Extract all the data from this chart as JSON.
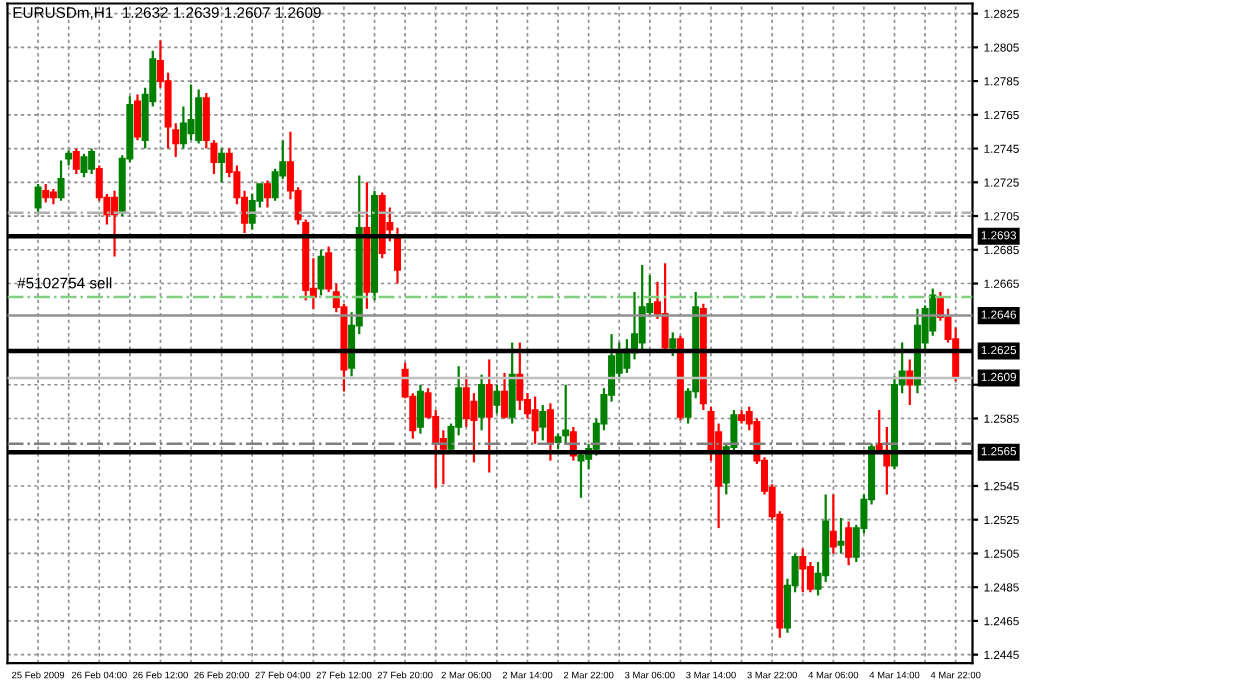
{
  "chart_data": {
    "type": "candlestick",
    "title": "EURUSDm,H1  1.2632 1.2639 1.2607 1.2609",
    "categories": [
      "25 Feb 2009",
      null,
      null,
      null,
      null,
      null,
      null,
      null,
      "26 Feb 04:00",
      null,
      null,
      null,
      null,
      null,
      null,
      null,
      "26 Feb 12:00",
      null,
      null,
      null,
      null,
      null,
      null,
      null,
      "26 Feb 20:00",
      null,
      null,
      null,
      null,
      null,
      null,
      null,
      "27 Feb 04:00",
      null,
      null,
      null,
      null,
      null,
      null,
      null,
      "27 Feb 12:00",
      null,
      null,
      null,
      null,
      null,
      null,
      null,
      "27 Feb 20:00",
      null,
      null,
      null,
      null,
      null,
      null,
      null,
      "2 Mar 06:00",
      null,
      null,
      null,
      null,
      null,
      null,
      null,
      "2 Mar 14:00",
      null,
      null,
      null,
      null,
      null,
      null,
      null,
      "2 Mar 22:00",
      null,
      null,
      null,
      null,
      null,
      null,
      null,
      "3 Mar 06:00",
      null,
      null,
      null,
      null,
      null,
      null,
      null,
      "3 Mar 14:00",
      null,
      null,
      null,
      null,
      null,
      null,
      null,
      "3 Mar 22:00",
      null,
      null,
      null,
      null,
      null,
      null,
      null,
      "4 Mar 06:00",
      null,
      null,
      null,
      null,
      null,
      null,
      null,
      "4 Mar 14:00",
      null,
      null,
      null,
      null,
      null,
      null,
      null,
      "4 Mar 22:00"
    ],
    "ohlc": [
      [
        1.271,
        1.2724,
        1.2706,
        1.2722
      ],
      [
        1.272,
        1.2724,
        1.2713,
        1.2716
      ],
      [
        1.2719,
        1.2721,
        1.2712,
        1.2716
      ],
      [
        1.2716,
        1.2738,
        1.2714,
        1.2727
      ],
      [
        1.2739,
        1.2744,
        1.2735,
        1.2742
      ],
      [
        1.2743,
        1.2745,
        1.273,
        1.2733
      ],
      [
        1.2731,
        1.2742,
        1.2728,
        1.274
      ],
      [
        1.2733,
        1.2745,
        1.273,
        1.2743
      ],
      [
        1.2733,
        1.2735,
        1.2714,
        1.2716
      ],
      [
        1.2716,
        1.2718,
        1.27,
        1.2706
      ],
      [
        1.2716,
        1.272,
        1.2681,
        1.2706
      ],
      [
        1.2708,
        1.2741,
        1.2705,
        1.2739
      ],
      [
        1.2739,
        1.2776,
        1.2737,
        1.2771
      ],
      [
        1.2773,
        1.2777,
        1.275,
        1.2752
      ],
      [
        1.275,
        1.2781,
        1.2745,
        1.2777
      ],
      [
        1.2773,
        1.2803,
        1.277,
        1.2798
      ],
      [
        1.2797,
        1.2809,
        1.2781,
        1.2785
      ],
      [
        1.2785,
        1.279,
        1.2745,
        1.2758
      ],
      [
        1.2756,
        1.276,
        1.274,
        1.2748
      ],
      [
        1.2748,
        1.277,
        1.2745,
        1.276
      ],
      [
        1.2754,
        1.2783,
        1.275,
        1.2762
      ],
      [
        1.275,
        1.278,
        1.2748,
        1.2775
      ],
      [
        1.2775,
        1.2778,
        1.2745,
        1.275
      ],
      [
        1.2748,
        1.275,
        1.273,
        1.2737
      ],
      [
        1.2737,
        1.2745,
        1.2725,
        1.2742
      ],
      [
        1.2742,
        1.2745,
        1.2728,
        1.2731
      ],
      [
        1.2731,
        1.2735,
        1.2712,
        1.2716
      ],
      [
        1.2716,
        1.272,
        1.2695,
        1.2701
      ],
      [
        1.2701,
        1.2718,
        1.2697,
        1.2714
      ],
      [
        1.2714,
        1.2724,
        1.271,
        1.2724
      ],
      [
        1.2724,
        1.2726,
        1.271,
        1.2716
      ],
      [
        1.2716,
        1.2733,
        1.2714,
        1.2731
      ],
      [
        1.2729,
        1.275,
        1.2727,
        1.2737
      ],
      [
        1.2737,
        1.2755,
        1.2715,
        1.272
      ],
      [
        1.272,
        1.2722,
        1.27,
        1.2703
      ],
      [
        1.2701,
        1.2703,
        1.2655,
        1.2661
      ],
      [
        1.2662,
        1.268,
        1.265,
        1.2657
      ],
      [
        1.2662,
        1.2685,
        1.2658,
        1.2681
      ],
      [
        1.2683,
        1.2687,
        1.266,
        1.2662
      ],
      [
        1.266,
        1.2665,
        1.2648,
        1.2651
      ],
      [
        1.2651,
        1.2653,
        1.2601,
        1.2614
      ],
      [
        1.2615,
        1.2648,
        1.261,
        1.264
      ],
      [
        1.264,
        1.2729,
        1.2635,
        1.2698
      ],
      [
        1.2698,
        1.2725,
        1.265,
        1.266
      ],
      [
        1.266,
        1.272,
        1.2655,
        1.2717
      ],
      [
        1.2717,
        1.2719,
        1.268,
        1.2683
      ],
      [
        1.2701,
        1.271,
        1.269,
        1.2697
      ],
      [
        1.2693,
        1.2698,
        1.2665,
        1.2673
      ],
      [
        1.2614,
        1.2618,
        1.2597,
        1.2598
      ],
      [
        1.2598,
        1.26,
        1.2573,
        1.2578
      ],
      [
        1.258,
        1.2605,
        1.2576,
        1.2601
      ],
      [
        1.26,
        1.2603,
        1.2585,
        1.2586
      ],
      [
        1.2586,
        1.259,
        1.2544,
        1.257
      ],
      [
        1.2573,
        1.2578,
        1.2546,
        1.2567
      ],
      [
        1.2567,
        1.2582,
        1.2564,
        1.258
      ],
      [
        1.258,
        1.2616,
        1.2575,
        1.2603
      ],
      [
        1.2603,
        1.261,
        1.258,
        1.2585
      ],
      [
        1.2595,
        1.26,
        1.2559,
        1.2584
      ],
      [
        1.2586,
        1.2611,
        1.2578,
        1.2605
      ],
      [
        1.2605,
        1.262,
        1.2553,
        1.2586
      ],
      [
        1.2593,
        1.2605,
        1.2588,
        1.2601
      ],
      [
        1.2601,
        1.2612,
        1.2585,
        1.2586
      ],
      [
        1.2586,
        1.263,
        1.2582,
        1.2611
      ],
      [
        1.2611,
        1.263,
        1.259,
        1.2596
      ],
      [
        1.2596,
        1.26,
        1.2585,
        1.2588
      ],
      [
        1.259,
        1.2598,
        1.257,
        1.2578
      ],
      [
        1.258,
        1.2593,
        1.2572,
        1.2589
      ],
      [
        1.259,
        1.2594,
        1.256,
        1.257
      ],
      [
        1.2571,
        1.2576,
        1.2567,
        1.2574
      ],
      [
        1.2575,
        1.2605,
        1.257,
        1.2578
      ],
      [
        1.2577,
        1.258,
        1.256,
        1.2563
      ],
      [
        1.256,
        1.2565,
        1.2538,
        1.2563
      ],
      [
        1.2561,
        1.257,
        1.2555,
        1.2567
      ],
      [
        1.2567,
        1.2585,
        1.2563,
        1.2582
      ],
      [
        1.2582,
        1.2603,
        1.2578,
        1.2599
      ],
      [
        1.2599,
        1.2635,
        1.2595,
        1.2622
      ],
      [
        1.2612,
        1.263,
        1.2608,
        1.2624
      ],
      [
        1.2615,
        1.2632,
        1.2612,
        1.2626
      ],
      [
        1.2624,
        1.266,
        1.262,
        1.2635
      ],
      [
        1.263,
        1.2676,
        1.2626,
        1.2651
      ],
      [
        1.2648,
        1.267,
        1.2645,
        1.2653
      ],
      [
        1.2654,
        1.2666,
        1.2644,
        1.2647
      ],
      [
        1.2647,
        1.2677,
        1.2625,
        1.2627
      ],
      [
        1.2627,
        1.2636,
        1.2622,
        1.2632
      ],
      [
        1.2632,
        1.2634,
        1.2584,
        1.2586
      ],
      [
        1.2586,
        1.2603,
        1.2582,
        1.2601
      ],
      [
        1.2601,
        1.266,
        1.2597,
        1.2651
      ],
      [
        1.265,
        1.2653,
        1.259,
        1.2594
      ],
      [
        1.2589,
        1.2592,
        1.256,
        1.2565
      ],
      [
        1.2577,
        1.2582,
        1.252,
        1.2545
      ],
      [
        1.2547,
        1.257,
        1.254,
        1.2568
      ],
      [
        1.2568,
        1.259,
        1.2565,
        1.2587
      ],
      [
        1.2587,
        1.259,
        1.2582,
        1.2584
      ],
      [
        1.2589,
        1.2592,
        1.2578,
        1.2582
      ],
      [
        1.2583,
        1.2585,
        1.2558,
        1.256
      ],
      [
        1.256,
        1.2562,
        1.254,
        1.2542
      ],
      [
        1.2544,
        1.2546,
        1.2525,
        1.2527
      ],
      [
        1.2528,
        1.253,
        1.2455,
        1.2461
      ],
      [
        1.2461,
        1.249,
        1.2458,
        1.2486
      ],
      [
        1.2486,
        1.2505,
        1.2482,
        1.2503
      ],
      [
        1.2503,
        1.2508,
        1.2482,
        1.2496
      ],
      [
        1.2497,
        1.25,
        1.2482,
        1.2484
      ],
      [
        1.2484,
        1.25,
        1.248,
        1.2493
      ],
      [
        1.2492,
        1.254,
        1.2488,
        1.2524
      ],
      [
        1.2518,
        1.254,
        1.2505,
        1.2509
      ],
      [
        1.251,
        1.2526,
        1.2505,
        1.2512
      ],
      [
        1.252,
        1.2524,
        1.2498,
        1.2503
      ],
      [
        1.2503,
        1.2522,
        1.25,
        1.252
      ],
      [
        1.252,
        1.254,
        1.2517,
        1.2537
      ],
      [
        1.2537,
        1.257,
        1.2534,
        1.2568
      ],
      [
        1.257,
        1.259,
        1.2565,
        1.2566
      ],
      [
        1.2566,
        1.258,
        1.254,
        1.2557
      ],
      [
        1.2557,
        1.261,
        1.2555,
        1.2605
      ],
      [
        1.2605,
        1.263,
        1.26,
        1.2613
      ],
      [
        1.2613,
        1.262,
        1.2593,
        1.2605
      ],
      [
        1.2605,
        1.265,
        1.26,
        1.264
      ],
      [
        1.263,
        1.2652,
        1.2626,
        1.265
      ],
      [
        1.2637,
        1.2662,
        1.2634,
        1.2658
      ],
      [
        1.2656,
        1.266,
        1.2643,
        1.2645
      ],
      [
        1.2645,
        1.265,
        1.263,
        1.2632
      ],
      [
        1.2632,
        1.2639,
        1.2607,
        1.2609
      ]
    ],
    "colors": [
      "#008000",
      "#ff0000",
      "#ff0000",
      "#008000",
      "#008000",
      "#ff0000",
      "#008000",
      "#008000",
      "#ff0000",
      "#ff0000",
      "#ff0000",
      "#008000",
      "#008000",
      "#ff0000",
      "#008000",
      "#008000",
      "#ff0000",
      "#ff0000",
      "#ff0000",
      "#008000",
      "#008000",
      "#008000",
      "#ff0000",
      "#ff0000",
      "#008000",
      "#ff0000",
      "#ff0000",
      "#ff0000",
      "#008000",
      "#008000",
      "#ff0000",
      "#008000",
      "#008000",
      "#ff0000",
      "#ff0000",
      "#ff0000",
      "#ff0000",
      "#008000",
      "#ff0000",
      "#ff0000",
      "#ff0000",
      "#008000",
      "#008000",
      "#ff0000",
      "#008000",
      "#ff0000",
      "#ff0000",
      "#ff0000",
      "#ff0000",
      "#ff0000",
      "#008000",
      "#ff0000",
      "#ff0000",
      "#ff0000",
      "#008000",
      "#008000",
      "#ff0000",
      "#ff0000",
      "#008000",
      "#ff0000",
      "#008000",
      "#ff0000",
      "#008000",
      "#ff0000",
      "#ff0000",
      "#ff0000",
      "#008000",
      "#ff0000",
      "#008000",
      "#008000",
      "#ff0000",
      "#008000",
      "#008000",
      "#008000",
      "#008000",
      "#008000",
      "#008000",
      "#008000",
      "#008000",
      "#008000",
      "#008000",
      "#ff0000",
      "#ff0000",
      "#008000",
      "#ff0000",
      "#008000",
      "#008000",
      "#ff0000",
      "#ff0000",
      "#ff0000",
      "#008000",
      "#008000",
      "#ff0000",
      "#ff0000",
      "#ff0000",
      "#ff0000",
      "#ff0000",
      "#ff0000",
      "#008000",
      "#008000",
      "#ff0000",
      "#ff0000",
      "#008000",
      "#008000",
      "#ff0000",
      "#008000",
      "#ff0000",
      "#008000",
      "#008000",
      "#008000",
      "#ff0000",
      "#ff0000",
      "#008000",
      "#008000",
      "#ff0000",
      "#008000",
      "#008000",
      "#008000",
      "#ff0000",
      "#ff0000",
      "#ff0000"
    ],
    "ylim": [
      1.244,
      1.2831
    ],
    "yticks": [
      1.2825,
      1.2805,
      1.2785,
      1.2765,
      1.2745,
      1.2725,
      1.2705,
      1.2685,
      1.2665,
      {
        "value": 1.2605,
        "label": null
      },
      1.2585,
      1.2545,
      1.2525,
      1.2505,
      1.2485,
      1.2465,
      1.2445
    ],
    "grid": true,
    "ref_lines": [
      {
        "axis": "y",
        "value": 1.2707,
        "color": "#b0b0b0",
        "line_style": "dashed"
      },
      {
        "axis": "y",
        "value": 1.2693,
        "label": "1.2693",
        "color": "#000000",
        "line_style": "solid"
      },
      {
        "axis": "y",
        "value": 1.2657,
        "color": "#80d080",
        "line_style": "dashed"
      },
      {
        "axis": "y",
        "value": 1.2646,
        "label": "1.2646",
        "color": "#909090",
        "line_style": "solid"
      },
      {
        "axis": "y",
        "value": 1.2625,
        "label": "1.2625",
        "color": "#000000",
        "line_style": "solid"
      },
      {
        "axis": "y",
        "value": 1.2609,
        "label": "1.2609",
        "color": "#c0c0c0",
        "line_style": "solid"
      },
      {
        "axis": "y",
        "value": 1.257,
        "color": "#808080",
        "line_style": "dashed"
      },
      {
        "axis": "y",
        "value": 1.2565,
        "label": "1.2565",
        "color": "#000000",
        "line_style": "solid"
      }
    ],
    "annotations": [
      {
        "text": "#5102754 sell",
        "y": 1.2657
      }
    ]
  }
}
